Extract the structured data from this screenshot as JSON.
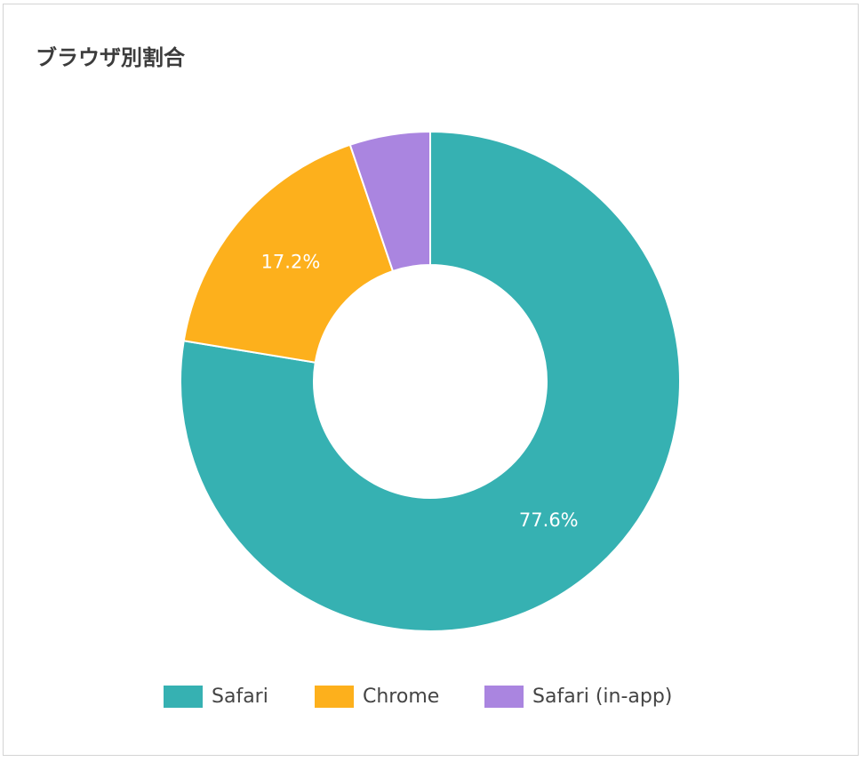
{
  "chart_data": {
    "type": "pie",
    "title": "ブラウザ別割合",
    "donut": true,
    "categories": [
      "Safari",
      "Chrome",
      "Safari (in-app)"
    ],
    "values": [
      77.6,
      17.2,
      5.2
    ],
    "data_labels": [
      "77.6%",
      "17.2%",
      ""
    ],
    "colors": [
      "#36b1b2",
      "#fdb01c",
      "#aa85e0"
    ],
    "legend_position": "bottom"
  }
}
